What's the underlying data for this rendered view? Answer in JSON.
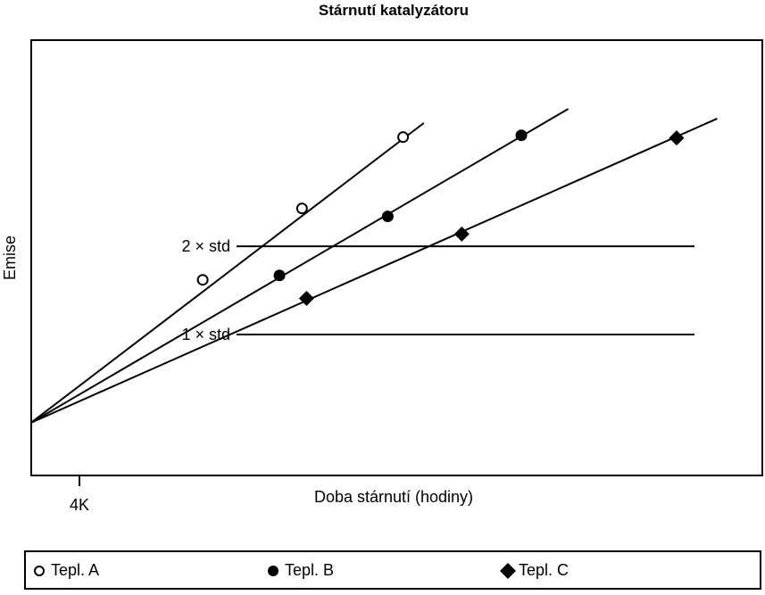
{
  "chart_data": {
    "type": "line",
    "title": "Stárnutí katalyzátoru",
    "xlabel": "Doba stárnutí (hodiny)",
    "ylabel": "Emise",
    "x_tick_label": "4K",
    "reference_lines": [
      {
        "label": "2 × std",
        "y": 2.0
      },
      {
        "label": "1 × std",
        "y": 1.0
      }
    ],
    "xlim": [
      0,
      8.1
    ],
    "ylim": [
      -0.6,
      4.34
    ],
    "origin": [
      0,
      0
    ],
    "series": [
      {
        "name": "Tepl. A",
        "marker": "circle-open",
        "points": [
          [
            1.9,
            1.62
          ],
          [
            3.0,
            2.43
          ],
          [
            4.12,
            3.24
          ]
        ],
        "line_end": [
          4.35,
          3.4
        ]
      },
      {
        "name": "Tepl. B",
        "marker": "circle-filled",
        "points": [
          [
            2.75,
            1.67
          ],
          [
            3.95,
            2.34
          ],
          [
            5.43,
            3.26
          ]
        ],
        "line_end": [
          5.95,
          3.56
        ]
      },
      {
        "name": "Tepl. C",
        "marker": "diamond-filled",
        "points": [
          [
            3.05,
            1.41
          ],
          [
            4.77,
            2.14
          ],
          [
            7.15,
            3.23
          ]
        ],
        "line_end": [
          7.6,
          3.45
        ]
      }
    ],
    "legend_position": "bottom",
    "grid": false
  }
}
